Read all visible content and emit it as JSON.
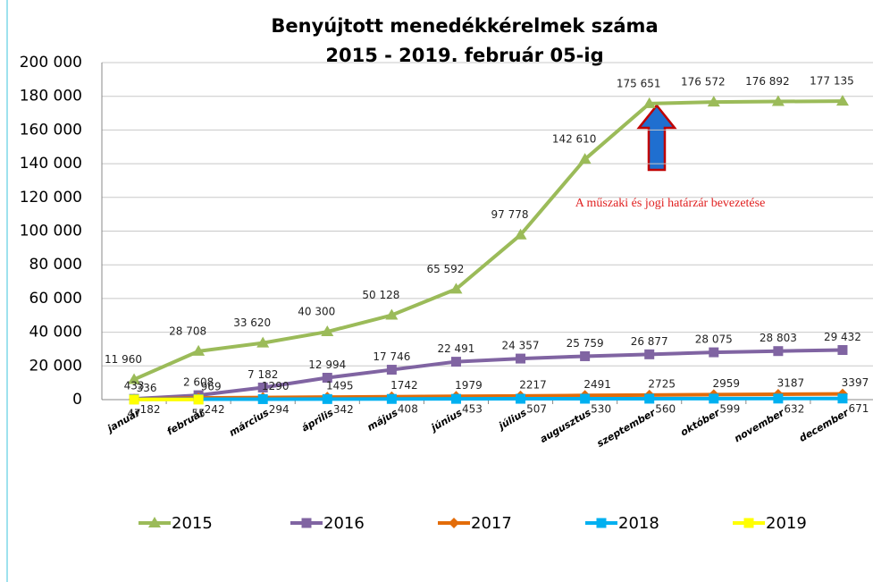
{
  "chart_data": {
    "type": "line",
    "title": "Benyújtott menedékkérelmek száma",
    "subtitle": "2015 - 2019. február 05-ig",
    "annotation": "A műszaki és jogi határzár bevezetése",
    "categories": [
      "január",
      "február",
      "március",
      "április",
      "május",
      "június",
      "július",
      "augusztus",
      "szeptember",
      "október",
      "november",
      "december"
    ],
    "series": [
      {
        "name": "2015",
        "color": "#9bbb59",
        "marker": "triangle",
        "values": [
          11960,
          28708,
          33620,
          40300,
          50128,
          65592,
          97778,
          142610,
          175651,
          176572,
          176892,
          177135
        ],
        "value_labels": [
          "11 960",
          "28 708",
          "33 620",
          "40 300",
          "50 128",
          "65 592",
          "97 778",
          "142 610",
          "175 651",
          "176 572",
          "176 892",
          "177 135"
        ]
      },
      {
        "name": "2016",
        "color": "#8064a2",
        "marker": "square",
        "values": [
          433,
          2608,
          7182,
          12994,
          17746,
          22491,
          24357,
          25759,
          26877,
          28075,
          28803,
          29432
        ],
        "value_labels": [
          "433",
          "2 608",
          "7 182",
          "12 994",
          "17 746",
          "22 491",
          "24 357",
          "25 759",
          "26 877",
          "28 075",
          "28 803",
          "29 432"
        ]
      },
      {
        "name": "2017",
        "color": "#e36c09",
        "marker": "diamond",
        "values": [
          336,
          969,
          1290,
          1495,
          1742,
          1979,
          2217,
          2491,
          2725,
          2959,
          3187,
          3397
        ]
      },
      {
        "name": "2018",
        "color": "#00b0f0",
        "marker": "square",
        "values": [
          182,
          242,
          294,
          342,
          408,
          453,
          507,
          530,
          560,
          599,
          632,
          671
        ]
      },
      {
        "name": "2019",
        "color": "#ffff00",
        "marker": "square",
        "values": [
          47,
          55,
          null,
          null,
          null,
          null,
          null,
          null,
          null,
          null,
          null,
          null
        ]
      }
    ],
    "ylim": [
      0,
      200000
    ],
    "yticks": [
      0,
      {
        "value": 20000,
        "label": "20 000"
      },
      {
        "value": 40000,
        "label": "40 000"
      },
      {
        "value": 60000,
        "label": "60 000"
      },
      {
        "value": 80000,
        "label": "80 000"
      },
      {
        "value": 100000,
        "label": "100 000"
      },
      {
        "value": 120000,
        "label": "120 000"
      },
      {
        "value": 140000,
        "label": "140 000"
      },
      {
        "value": 160000,
        "label": "160 000"
      },
      {
        "value": 180000,
        "label": "180 000"
      },
      {
        "value": 200000,
        "label": "200 000"
      }
    ],
    "grid": true
  }
}
